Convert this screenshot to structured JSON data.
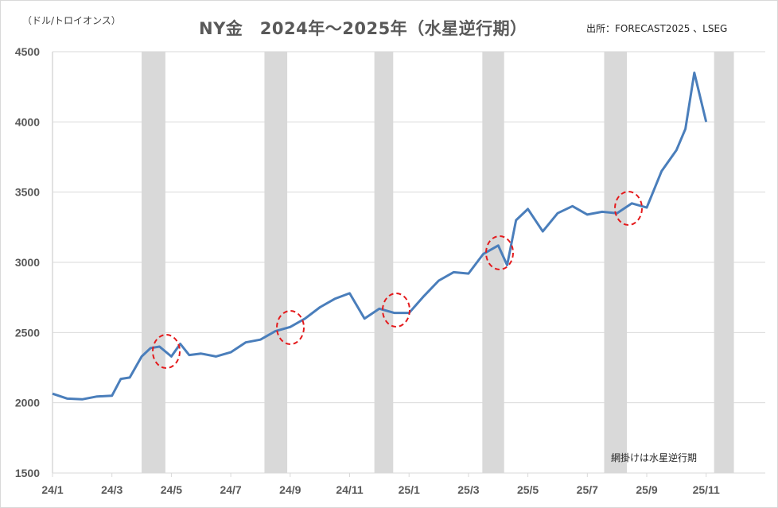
{
  "header": {
    "title": "NY金　2024年～2025年（水星逆行期）",
    "unit_label": "（ドル/トロイオンス）",
    "source": "出所：FORECAST2025 、LSEG"
  },
  "footer_note": "網掛けは水星逆行期",
  "colors": {
    "line": "#4a7ebb",
    "band": "#d9d9d9",
    "circle": "#e41a1c",
    "grid": "#d9d9d9",
    "tick_text": "#595959"
  },
  "chart_data": {
    "type": "line",
    "title": "NY金　2024年～2025年（水星逆行期）",
    "xlabel": "",
    "ylabel": "（ドル/トロイオンス）",
    "ylim": [
      1500,
      4500
    ],
    "yticks": [
      1500,
      2000,
      2500,
      3000,
      3500,
      4000,
      4500
    ],
    "xticks": [
      "24/1",
      "24/3",
      "24/5",
      "24/7",
      "24/9",
      "24/11",
      "25/1",
      "25/3",
      "25/5",
      "25/7",
      "25/9",
      "25/11"
    ],
    "grid": "horizontal",
    "legend": "none",
    "series": [
      {
        "name": "NY金",
        "x": [
          "24/1",
          "24/1.5",
          "24/2",
          "24/2.5",
          "24/3",
          "24/3.3",
          "24/3.6",
          "24/4",
          "24/4.3",
          "24/4.6",
          "24/5",
          "24/5.3",
          "24/5.6",
          "24/6",
          "24/6.5",
          "24/7",
          "24/7.5",
          "24/8",
          "24/8.5",
          "24/9",
          "24/9.5",
          "24/10",
          "24/10.5",
          "24/11",
          "24/11.5",
          "24/12",
          "24/12.5",
          "25/1",
          "25/1.5",
          "25/2",
          "25/2.5",
          "25/3",
          "25/3.5",
          "25/4",
          "25/4.3",
          "25/4.6",
          "25/5",
          "25/5.5",
          "25/6",
          "25/6.5",
          "25/7",
          "25/7.5",
          "25/8",
          "25/8.5",
          "25/9",
          "25/9.5",
          "25/10",
          "25/10.3",
          "25/10.6",
          "25/11"
        ],
        "values": [
          2065,
          2030,
          2025,
          2045,
          2050,
          2170,
          2180,
          2330,
          2390,
          2400,
          2330,
          2420,
          2340,
          2350,
          2330,
          2360,
          2430,
          2450,
          2510,
          2540,
          2600,
          2680,
          2740,
          2780,
          2600,
          2670,
          2640,
          2640,
          2760,
          2870,
          2930,
          2920,
          3060,
          3120,
          2980,
          3300,
          3380,
          3220,
          3350,
          3400,
          3340,
          3360,
          3350,
          3420,
          3390,
          3650,
          3800,
          3950,
          4350,
          4000
        ]
      }
    ],
    "shaded_bands": [
      {
        "label": "水星逆行期",
        "start": "24/4/1",
        "end": "24/4/25"
      },
      {
        "label": "水星逆行期",
        "start": "24/8/5",
        "end": "24/8/28"
      },
      {
        "label": "水星逆行期",
        "start": "24/11/26",
        "end": "24/12/15"
      },
      {
        "label": "水星逆行期",
        "start": "25/3/15",
        "end": "25/4/7"
      },
      {
        "label": "水星逆行期",
        "start": "25/7/18",
        "end": "25/8/11"
      },
      {
        "label": "水星逆行期",
        "start": "25/11/9",
        "end": "25/11/29"
      }
    ],
    "annotations": [
      {
        "type": "dashed-circle",
        "near": "24/4 end",
        "value": 2350
      },
      {
        "type": "dashed-circle",
        "near": "24/8 end",
        "value": 2530
      },
      {
        "type": "dashed-circle",
        "near": "24/12 mid",
        "value": 2660
      },
      {
        "type": "dashed-circle",
        "near": "25/4 start",
        "value": 3070
      },
      {
        "type": "dashed-circle",
        "near": "25/8 mid",
        "value": 3380
      }
    ]
  }
}
